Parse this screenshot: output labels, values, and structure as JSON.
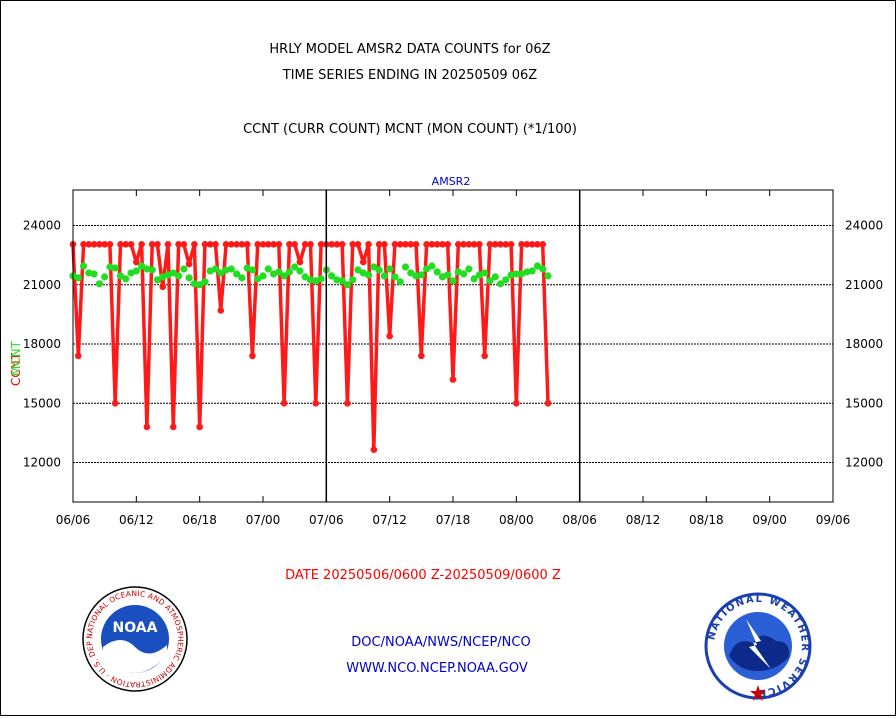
{
  "chart_data": {
    "type": "line",
    "title": "HRLY MODEL AMSR2 DATA COUNTS for 06Z",
    "subtitle": "TIME SERIES ENDING IN 20250509 06Z",
    "description_line": "CCNT (CURR COUNT) MCNT (MON COUNT) (*1/100)",
    "panel_label": "AMSR2",
    "ylabel_ccnt": "CCNT",
    "ylabel_mcnt": "MCNT",
    "xlabel": "DATE 20250506/0600 Z-20250509/0600 Z",
    "ylim": [
      10000,
      25800
    ],
    "yticks": [
      12000,
      15000,
      18000,
      21000,
      24000
    ],
    "ytick_labels": [
      "12000",
      "15000",
      "18000",
      "21000",
      "24000"
    ],
    "xticks": [
      "06/06",
      "06/12",
      "06/18",
      "07/00",
      "07/06",
      "07/12",
      "07/18",
      "08/00",
      "08/06",
      "08/12",
      "08/18",
      "09/00",
      "09/06"
    ],
    "grid": "horizontal",
    "x_range_hours": [
      0,
      72
    ],
    "x_step_hours": 0.5,
    "colors": {
      "ccnt": "#ff1a1a",
      "mcnt": "#22dd22",
      "axis_text": "#000000",
      "panel_label": "#0000cc",
      "date": "#ff0000",
      "footer": "#0000cc"
    },
    "series": [
      {
        "name": "CCNT",
        "values": [
          23050,
          17400,
          23050,
          23050,
          23050,
          23050,
          23050,
          23050,
          15000,
          23050,
          23050,
          23050,
          22150,
          23050,
          13800,
          23050,
          23050,
          20900,
          23050,
          13800,
          23050,
          23050,
          22050,
          23050,
          13800,
          23050,
          23050,
          23050,
          19700,
          23050,
          23050,
          23050,
          23050,
          23050,
          17400,
          23050,
          23050,
          23050,
          23050,
          23050,
          15000,
          23050,
          23050,
          22150,
          23050,
          23050,
          15000,
          23050,
          23050,
          23050,
          23050,
          23050,
          15000,
          23050,
          23050,
          22150,
          23050,
          12650,
          23050,
          23050,
          18400,
          23050,
          23050,
          23050,
          23050,
          23050,
          17400,
          23050,
          23050,
          23050,
          23050,
          23050,
          16200,
          23050,
          23050,
          23050,
          23050,
          23050,
          17400,
          23050,
          23050,
          23050,
          23050,
          23050,
          15000,
          23050,
          23050,
          23050,
          23050,
          23050,
          15000
        ]
      },
      {
        "name": "MCNT",
        "values": [
          21450,
          21350,
          21950,
          21600,
          21550,
          21050,
          21400,
          21900,
          21850,
          21450,
          21300,
          21600,
          21700,
          21950,
          21800,
          21750,
          21250,
          21400,
          21500,
          21600,
          21450,
          21800,
          21350,
          21050,
          21000,
          21150,
          21700,
          21800,
          21600,
          21750,
          21800,
          21550,
          21350,
          21850,
          21750,
          21300,
          21450,
          21800,
          21550,
          21650,
          21450,
          21650,
          21900,
          21700,
          21400,
          21250,
          21200,
          21300,
          21750,
          21450,
          21250,
          21200,
          21000,
          21250,
          21750,
          21600,
          21500,
          21900,
          21750,
          21450,
          21800,
          21400,
          21150,
          21900,
          21600,
          21450,
          21500,
          21800,
          21950,
          21650,
          21400,
          21500,
          21200,
          21650,
          21550,
          21800,
          21300,
          21500,
          21600,
          21200,
          21400,
          21050,
          21250,
          21500,
          21550,
          21550,
          21650,
          21700,
          21950,
          21800,
          21450
        ]
      }
    ]
  },
  "footer": {
    "agency_line": "DOC/NOAA/NWS/NCEP/NCO",
    "website": "WWW.NCO.NCEP.NOAA.GOV",
    "noaa_logo_text": "NOAA",
    "noaa_ring_text": "NATIONAL OCEANIC AND ATMOSPHERIC ADMINISTRATION · U.S. DEPARTMENT OF COMMERCE ·",
    "nws_ring_text": "NATIONAL WEATHER SERVICE"
  }
}
